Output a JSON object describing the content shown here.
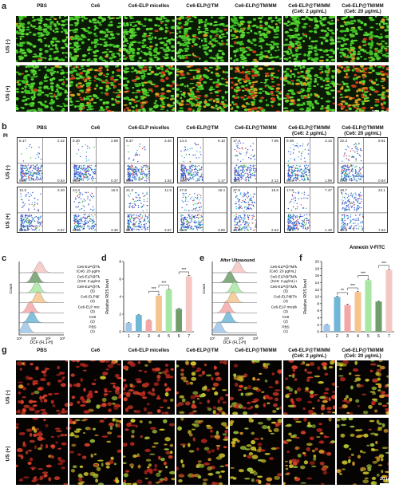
{
  "panels": {
    "a": "a",
    "b": "b",
    "c": "c",
    "d": "d",
    "e": "e",
    "f": "f",
    "g": "g"
  },
  "groups": [
    "PBS",
    "Ce6",
    "Ce6-ELP micelles",
    "Ce6-ELP@TM",
    "Ce6-ELP@TM/MM",
    "Ce6-ELP@TM/MM\n(Ce6: 2 μg/mL)",
    "Ce6-ELP@TM/MM\n(Ce6: 20 μg/mL)"
  ],
  "rows": [
    "US (-)",
    "US (+)"
  ],
  "scale_a": "100 μm",
  "scale_g": "20 μm",
  "flow_axis_y": "PI",
  "flow_axis_x": "Annexin V-FITC",
  "flow_quadrants": {
    "us_minus": [
      [
        "6.17",
        "2.42",
        "90.8",
        "0.63"
      ],
      [
        "9.30",
        "2.96",
        "86.4",
        "0.37"
      ],
      [
        "8.37",
        "3.40",
        "86.7",
        "1.52"
      ],
      [
        "14.4",
        "6.10",
        "78.3",
        "1.17"
      ],
      [
        "17.4",
        "7.95",
        "72.6",
        "2.12"
      ],
      [
        "9.39",
        "3.13",
        "85.5",
        "1.99"
      ],
      [
        "22.3",
        "9.91",
        "67.0",
        "0.84"
      ]
    ],
    "us_plus": [
      [
        "12.3",
        "3.40",
        "83.6",
        "0.67"
      ],
      [
        "24.3",
        "16.9",
        "57.5",
        "3.30"
      ],
      [
        "21.3",
        "11.9",
        "63.1",
        "3.67"
      ],
      [
        "27.8",
        "16.4",
        "52.0",
        "3.89"
      ],
      [
        "37.8",
        "15.9",
        "44.0",
        "2.53"
      ],
      [
        "17.8",
        "7.47",
        "73.3",
        "1.49"
      ],
      [
        "49.7",
        "22.1",
        "20.5",
        "7.64"
      ]
    ]
  },
  "histo_labels": [
    "Ce6-ELP@TM/MM\n(Ce6: 20 μg/mL) (7)",
    "Ce6-ELP@TM/MM\n(Ce6: 2 μg/mL) (6)",
    "Ce6-ELP@TM/MM\n(5)",
    "Ce6-ELP@TM\n(4)",
    "Ce6-ELP micelles\n(3)",
    "Ce6\n(2)",
    "PBS\n(1)"
  ],
  "histo_axis_x": "DCF (FL1-H)",
  "histo_axis_y": "Count",
  "after_us": "After Ultrasound",
  "chart_data": [
    {
      "type": "bar",
      "panel": "d",
      "categories": [
        "1",
        "2",
        "3",
        "4",
        "5",
        "6",
        "7"
      ],
      "values": [
        1.0,
        1.9,
        1.3,
        4.1,
        4.8,
        2.6,
        6.3
      ],
      "errors": [
        0.05,
        0.08,
        0.06,
        0.12,
        0.1,
        0.07,
        0.12
      ],
      "colors": [
        "#9fc5e8",
        "#6fb7d6",
        "#f4a7a7",
        "#f6c58f",
        "#a8e6a3",
        "#6f9e6a",
        "#f4c7c3"
      ],
      "ylabel": "Relative ROS level",
      "ylim": [
        0,
        8
      ],
      "yticks": [
        0,
        2,
        4,
        6,
        8
      ],
      "significance": [
        [
          3,
          4,
          "***"
        ],
        [
          4,
          5,
          "***"
        ],
        [
          6,
          7,
          "***"
        ]
      ]
    },
    {
      "type": "bar",
      "panel": "f",
      "categories": [
        "1",
        "2",
        "3",
        "4",
        "5",
        "6",
        "7"
      ],
      "values": [
        2.0,
        9.9,
        7.6,
        11.3,
        14.7,
        8.6,
        17.6
      ],
      "errors": [
        0.1,
        0.25,
        0.3,
        0.2,
        0.3,
        0.2,
        0.3
      ],
      "colors": [
        "#9fc5e8",
        "#6fb7d6",
        "#f4a7a7",
        "#f6c58f",
        "#a8e6a3",
        "#6f9e6a",
        "#f4c7c3"
      ],
      "ylabel": "Relative ROS level",
      "ylim": [
        0,
        20
      ],
      "yticks": [
        0,
        2,
        4,
        6,
        8,
        10,
        12,
        14,
        16,
        18,
        20
      ],
      "significance": [
        [
          2,
          3,
          "**"
        ],
        [
          3,
          4,
          "***"
        ],
        [
          4,
          5,
          "***"
        ],
        [
          6,
          7,
          "***"
        ]
      ]
    }
  ]
}
